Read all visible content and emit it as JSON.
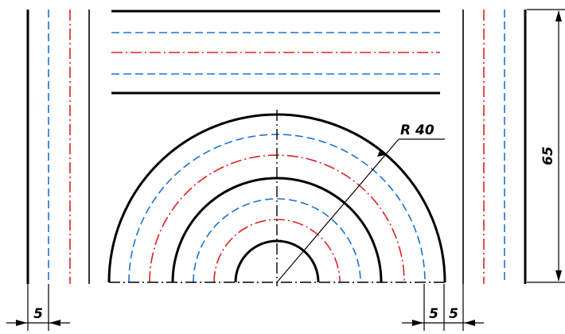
{
  "drawing": {
    "radius_label": "R 40",
    "height_label": "65",
    "gap_left_label": "5",
    "gap_right_1_label": "5",
    "gap_right_2_label": "5",
    "colors": {
      "solid": "#000000",
      "dashed": "#1a73d9",
      "dashdot": "#e02020",
      "center": "#000000"
    }
  }
}
